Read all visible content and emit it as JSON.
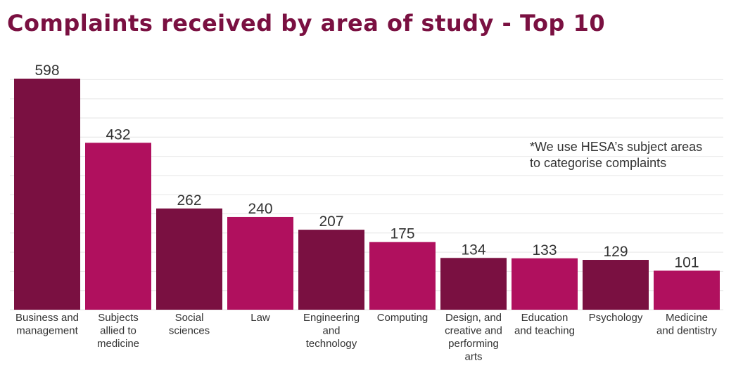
{
  "chart_data": {
    "type": "bar",
    "title": "Complaints received by area of study - Top 10",
    "xlabel": "",
    "ylabel": "",
    "ylim": [
      0,
      600
    ],
    "grid": true,
    "categories": [
      [
        "Business and",
        "management"
      ],
      [
        "Subjects",
        "allied to",
        "medicine"
      ],
      [
        "Social",
        "sciences"
      ],
      [
        "Law"
      ],
      [
        "Engineering",
        "and",
        "technology"
      ],
      [
        "Computing"
      ],
      [
        "Design, and",
        "creative and",
        "performing",
        "arts"
      ],
      [
        "Education",
        "and teaching"
      ],
      [
        "Psychology"
      ],
      [
        "Medicine",
        "and dentistry"
      ]
    ],
    "values": [
      598,
      432,
      262,
      240,
      207,
      175,
      134,
      133,
      129,
      101
    ],
    "bar_colors": [
      "#7a1041",
      "#b0105e",
      "#7a1041",
      "#b0105e",
      "#7a1041",
      "#b0105e",
      "#7a1041",
      "#b0105e",
      "#7a1041",
      "#b0105e"
    ],
    "annotation": [
      "*We use HESA’s subject areas",
      "to categorise complaints"
    ]
  },
  "colors": {
    "title": "#7a1041",
    "dark_bar": "#7a1041",
    "light_bar": "#b0105e",
    "grid": "#e6e6e6",
    "text": "#333333"
  }
}
